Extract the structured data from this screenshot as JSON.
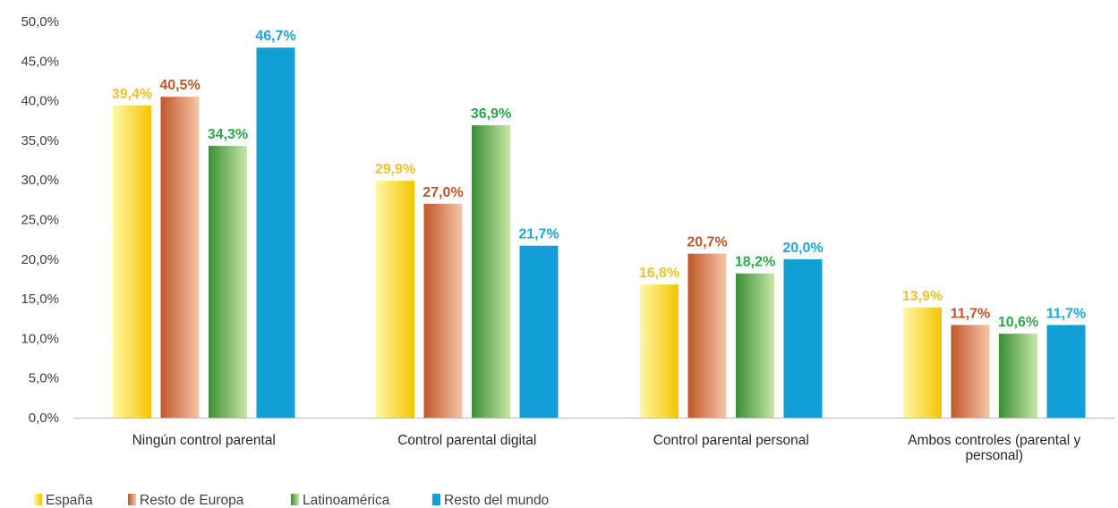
{
  "chart_data": {
    "type": "bar",
    "categories": [
      [
        "Ningún control parental"
      ],
      [
        "Control parental digital"
      ],
      [
        "Control parental personal"
      ],
      [
        "Ambos controles (parental y",
        "personal)"
      ]
    ],
    "series": [
      {
        "name": "España",
        "values": [
          39.4,
          29.9,
          16.8,
          13.9
        ],
        "labels": [
          "39,4%",
          "29,9%",
          "16,8%",
          "13,9%"
        ],
        "color": "#f5c400",
        "gradient": [
          "#fff7a8",
          "#f5c400"
        ],
        "label_color": "#f2c12e"
      },
      {
        "name": "Resto de Europa",
        "values": [
          40.5,
          27.0,
          20.7,
          11.7
        ],
        "labels": [
          "40,5%",
          "27,0%",
          "20,7%",
          "11,7%"
        ],
        "color": "#c0562a",
        "gradient": [
          "#c0562a",
          "#f6c7a8"
        ],
        "label_color": "#c0562a"
      },
      {
        "name": "Latinoamérica",
        "values": [
          34.3,
          36.9,
          18.2,
          10.6
        ],
        "labels": [
          "34,3%",
          "36,9%",
          "18,2%",
          "10,6%"
        ],
        "color": "#3a9a3a",
        "gradient": [
          "#3a8f35",
          "#c8e7a8"
        ],
        "label_color": "#2aa84a"
      },
      {
        "name": "Resto del mundo",
        "values": [
          46.7,
          21.7,
          20.0,
          11.7
        ],
        "labels": [
          "46,7%",
          "21,7%",
          "20,0%",
          "11,7%"
        ],
        "color": "#119fd6",
        "gradient": [
          "#119fd6",
          "#119fd6"
        ],
        "label_color": "#1aa7de"
      }
    ],
    "yticks": [
      "0,0%",
      "5,0%",
      "10,0%",
      "15,0%",
      "20,0%",
      "25,0%",
      "30,0%",
      "35,0%",
      "40,0%",
      "45,0%",
      "50,0%"
    ],
    "ylim": [
      0,
      50
    ],
    "ystep": 5,
    "grid": false,
    "legend_position": "bottom-left",
    "title": "",
    "xlabel": "",
    "ylabel": ""
  }
}
